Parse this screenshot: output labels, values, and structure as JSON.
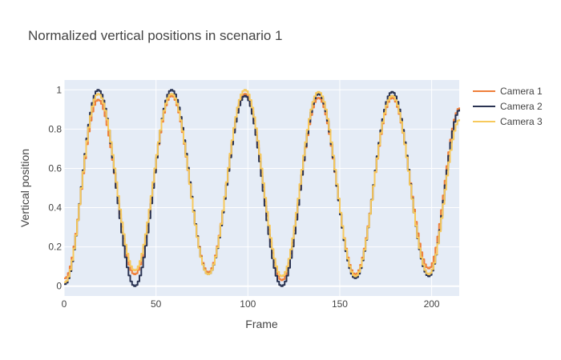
{
  "chart_data": {
    "type": "line",
    "title": "Normalized vertical positions in scenario 1",
    "xlabel": "Frame",
    "ylabel": "Vertical position",
    "xlim": [
      0,
      215
    ],
    "ylim": [
      -0.05,
      1.05
    ],
    "xticks": [
      0,
      50,
      100,
      150,
      200
    ],
    "yticks": [
      0,
      0.2,
      0.4,
      0.6,
      0.8,
      1
    ],
    "grid": true,
    "legend_position": "top-right",
    "period_frames": 40,
    "series": [
      {
        "name": "Camera 1",
        "color": "#ef7f3a"
      },
      {
        "name": "Camera 2",
        "color": "#2a3352"
      },
      {
        "name": "Camera 3",
        "color": "#f7c95c"
      }
    ],
    "peaks": [
      {
        "frame": 18,
        "camera_1": 0.95,
        "camera_2": 1.0,
        "camera_3": 0.98
      },
      {
        "frame": 58,
        "camera_1": 0.97,
        "camera_2": 1.0,
        "camera_3": 0.98
      },
      {
        "frame": 98,
        "camera_1": 0.98,
        "camera_2": 0.97,
        "camera_3": 1.0
      },
      {
        "frame": 138,
        "camera_1": 0.96,
        "camera_2": 0.98,
        "camera_3": 0.99
      },
      {
        "frame": 178,
        "camera_1": 0.96,
        "camera_2": 0.99,
        "camera_3": 0.97
      }
    ],
    "troughs": [
      {
        "frame": 0,
        "camera_1": 0.04,
        "camera_2": 0.01,
        "camera_3": 0.02
      },
      {
        "frame": 38,
        "camera_1": 0.06,
        "camera_2": 0.0,
        "camera_3": 0.08
      },
      {
        "frame": 78,
        "camera_1": 0.07,
        "camera_2": 0.06,
        "camera_3": 0.06
      },
      {
        "frame": 118,
        "camera_1": 0.03,
        "camera_2": 0.0,
        "camera_3": 0.05
      },
      {
        "frame": 158,
        "camera_1": 0.06,
        "camera_2": 0.04,
        "camera_3": 0.05
      },
      {
        "frame": 198,
        "camera_1": 0.09,
        "camera_2": 0.05,
        "camera_3": 0.06
      }
    ],
    "end": {
      "frame": 215,
      "camera_1": 0.91,
      "camera_2": 0.9,
      "camera_3": 0.85
    }
  }
}
